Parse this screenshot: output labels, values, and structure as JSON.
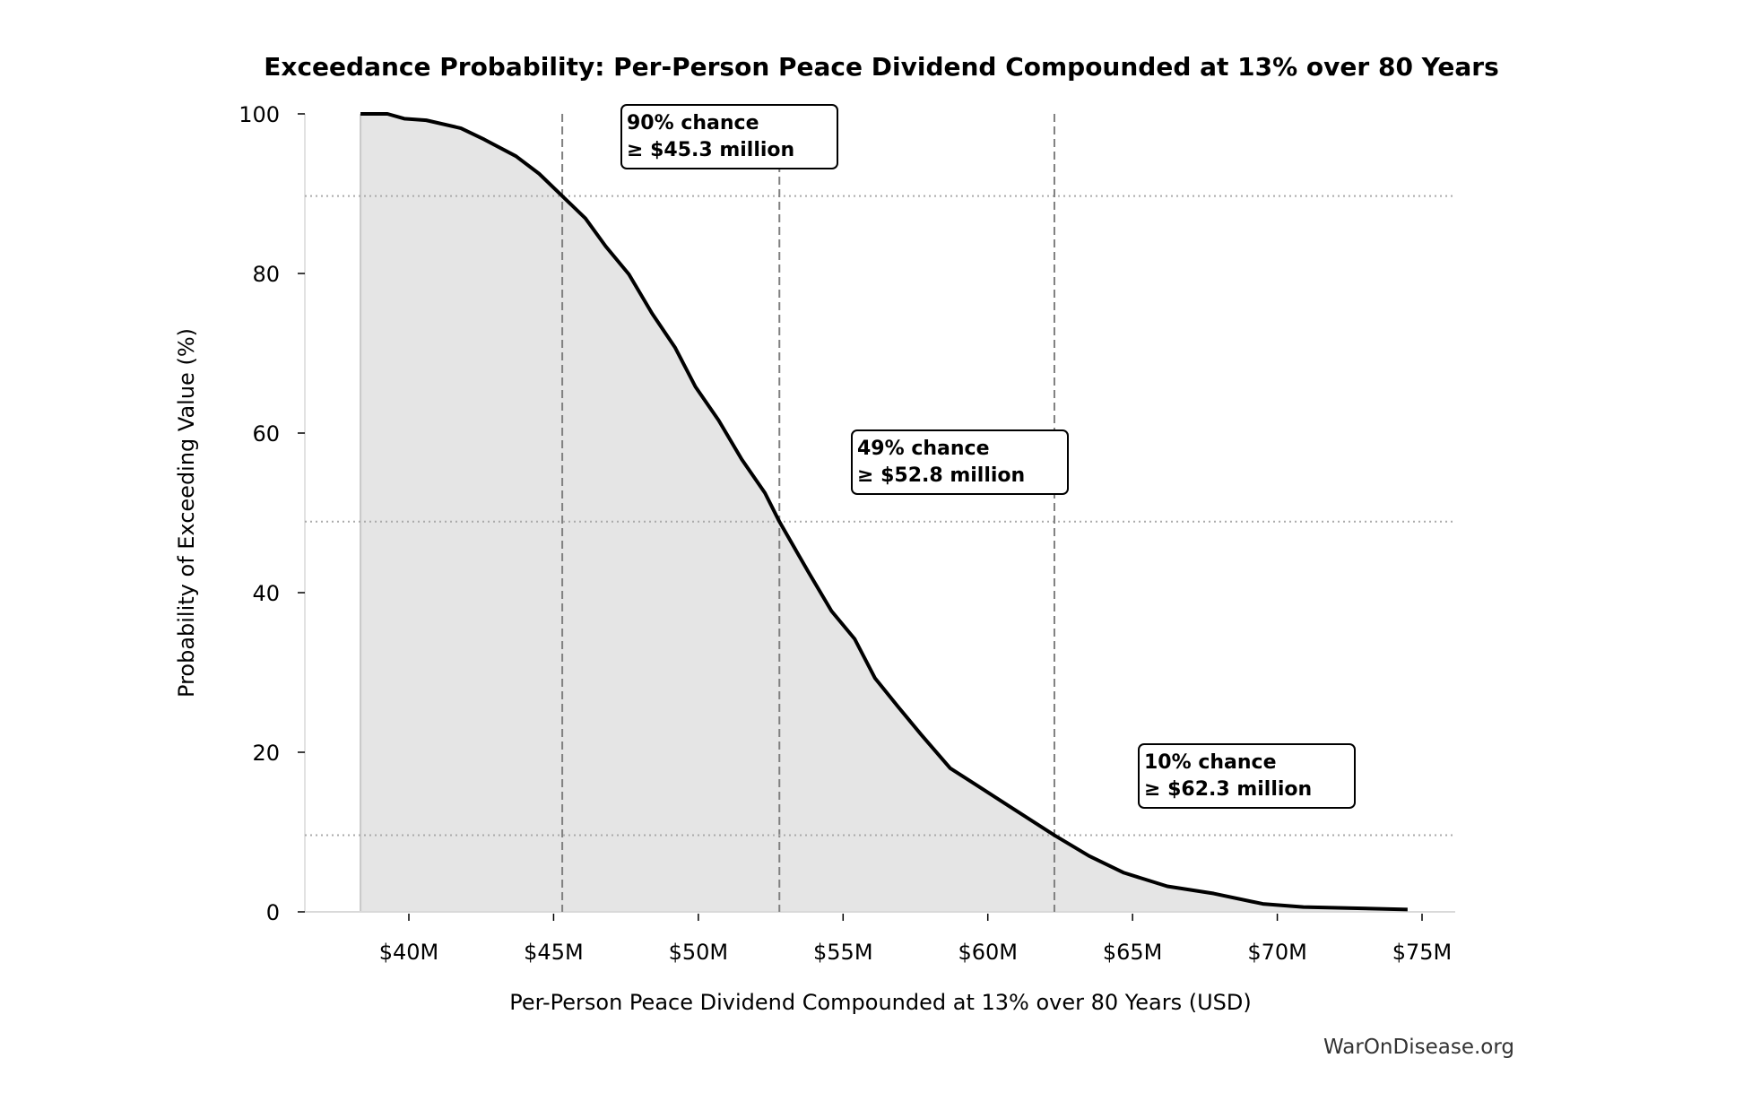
{
  "chart_data": {
    "type": "area",
    "title": "Exceedance Probability: Per-Person Peace Dividend Compounded at 13% over 80 Years",
    "xlabel": "Per-Person Peace Dividend Compounded at 13% over 80 Years (USD)",
    "ylabel": "Probability of Exceeding Value (%)",
    "xlim": [
      36.5,
      76.2
    ],
    "ylim": [
      0,
      100
    ],
    "x_ticks": [
      40,
      45,
      50,
      55,
      60,
      65,
      70,
      75
    ],
    "x_tick_labels": [
      "$40M",
      "$45M",
      "$50M",
      "$55M",
      "$60M",
      "$65M",
      "$70M",
      "$75M"
    ],
    "y_ticks": [
      0,
      20,
      40,
      60,
      80,
      100
    ],
    "y_tick_labels": [
      "0",
      "20",
      "40",
      "60",
      "80",
      "100"
    ],
    "x_units": "million USD",
    "curve_color": "#000000",
    "fill_color": "#e5e5e5",
    "series": [
      {
        "x": [
          38.33,
          39.26,
          39.84,
          40.6,
          41.8,
          42.6,
          43.7,
          44.5,
          45.3,
          46.1,
          46.8,
          47.6,
          48.4,
          49.2,
          49.9,
          50.7,
          51.5,
          52.3,
          52.8,
          53.8,
          54.6,
          55.4,
          56.1,
          56.9,
          57.7,
          58.7,
          59.6,
          60.8,
          62.3,
          63.5,
          64.7,
          66.2,
          67.8,
          69.5,
          70.9,
          74.5
        ],
        "y": [
          100,
          100,
          99.4,
          99.2,
          98.2,
          96.8,
          94.7,
          92.5,
          89.7,
          86.9,
          83.4,
          79.9,
          75,
          70.7,
          65.8,
          61.6,
          56.7,
          52.5,
          48.9,
          42.6,
          37.7,
          34.2,
          29.3,
          25.7,
          22.2,
          18,
          15.9,
          13.1,
          9.6,
          7,
          4.9,
          3.2,
          2.3,
          1,
          0.6,
          0.3
        ]
      }
    ],
    "annotations": [
      {
        "x": 45.3,
        "y": 89.7,
        "line1": "90% chance",
        "line2": "≥ $45.3 million"
      },
      {
        "x": 52.8,
        "y": 48.9,
        "line1": "49% chance",
        "line2": "≥ $52.8 million"
      },
      {
        "x": 62.3,
        "y": 9.6,
        "line1": "10% chance",
        "line2": "≥ $62.3 million"
      }
    ],
    "grid": false
  },
  "watermark": "WarOnDisease.org"
}
